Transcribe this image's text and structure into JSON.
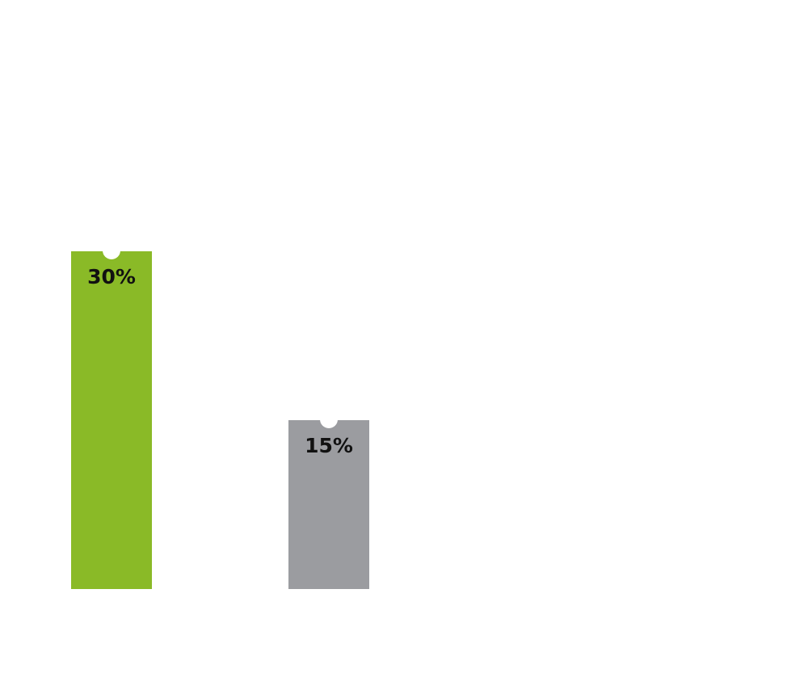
{
  "chart_data": {
    "type": "bar",
    "categories": [
      null,
      null
    ],
    "values": [
      30,
      15
    ],
    "value_labels": [
      "30%",
      "15%"
    ],
    "colors": [
      "#8aba27",
      "#9b9ca0"
    ]
  }
}
